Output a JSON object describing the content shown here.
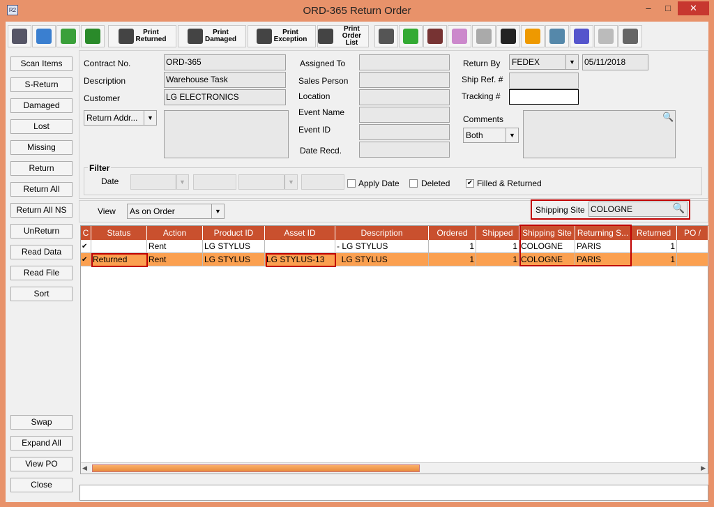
{
  "window": {
    "title": "ORD-365 Return Order",
    "logo": "R2",
    "minimize": "–",
    "maximize": "□",
    "close": "✕"
  },
  "toolbar": {
    "icons_left": [
      "binoculars-icon",
      "printer-icon",
      "refresh-icon",
      "zoom-icon"
    ],
    "print_buttons": [
      {
        "l1": "Print",
        "l2": "Returned"
      },
      {
        "l1": "Print",
        "l2": "Damaged"
      },
      {
        "l1": "Print",
        "l2": "Exception"
      },
      {
        "l1": "Print",
        "l2": "Order List"
      }
    ],
    "icons_right": [
      "scanner-list-icon",
      "add-remove-icon",
      "scanner-error-icon",
      "schedule-icon",
      "filter-down-icon",
      "filter-check-icon",
      "warning-document-icon",
      "edit-notes-icon",
      "color-grid-icon",
      "clock-icon",
      "truck-icon"
    ]
  },
  "left_buttons": [
    "Scan Items",
    "S-Return",
    "Damaged",
    "Lost",
    "Missing",
    "Return",
    "Return All",
    "Return All NS",
    "UnReturn",
    "Read Data",
    "Read File",
    "Sort"
  ],
  "bottom_buttons": [
    "Swap",
    "Expand All",
    "View PO",
    "Close"
  ],
  "form": {
    "contract_label": "Contract No.",
    "contract": "ORD-365",
    "description_label": "Description",
    "description": "Warehouse Task",
    "customer_label": "Customer",
    "customer": "LG ELECTRONICS",
    "address_combo": "Return Addr...",
    "assigned_label": "Assigned To",
    "sales_label": "Sales Person",
    "location_label": "Location",
    "event_name_label": "Event Name",
    "event_id_label": "Event ID",
    "date_recd_label": "Date Recd.",
    "return_by_label": "Return By",
    "return_by": "FEDEX",
    "return_date": "05/11/2018",
    "ship_ref_label": "Ship Ref. #",
    "tracking_label": "Tracking #",
    "comments_label": "Comments",
    "comments_combo": "Both"
  },
  "filter": {
    "title": "Filter",
    "date_label": "Date",
    "apply_date": "Apply Date",
    "deleted": "Deleted",
    "filled_returned": "Filled & Returned",
    "filled_checked": true
  },
  "view": {
    "label": "View",
    "value": "As on Order",
    "shipping_site_label": "Shipping Site",
    "shipping_site": "COLOGNE"
  },
  "grid": {
    "columns": [
      "C",
      "Status",
      "Action",
      "Product ID",
      "Asset ID",
      "Description",
      "Ordered",
      "Shipped",
      "Shipping Site",
      "Returning S...",
      "Returned",
      "PO /"
    ],
    "rows": [
      {
        "c": "✔",
        "status": "",
        "action": "Rent",
        "product": "LG STYLUS",
        "asset": "",
        "description": "- LG STYLUS",
        "ordered": "1",
        "shipped": "1",
        "ship_site": "COLOGNE",
        "ret_site": "PARIS",
        "returned": "1",
        "po": ""
      },
      {
        "c": "✔",
        "status": "Returned",
        "action": "Rent",
        "product": "LG STYLUS",
        "asset": "LG STYLUS-13",
        "description": "  LG STYLUS",
        "ordered": "1",
        "shipped": "1",
        "ship_site": "COLOGNE",
        "ret_site": "PARIS",
        "returned": "1",
        "po": ""
      }
    ]
  },
  "colors": {
    "header": "#c9502e",
    "selected_row": "#fba050",
    "highlight": "#c00000",
    "window": "#e8926a"
  }
}
